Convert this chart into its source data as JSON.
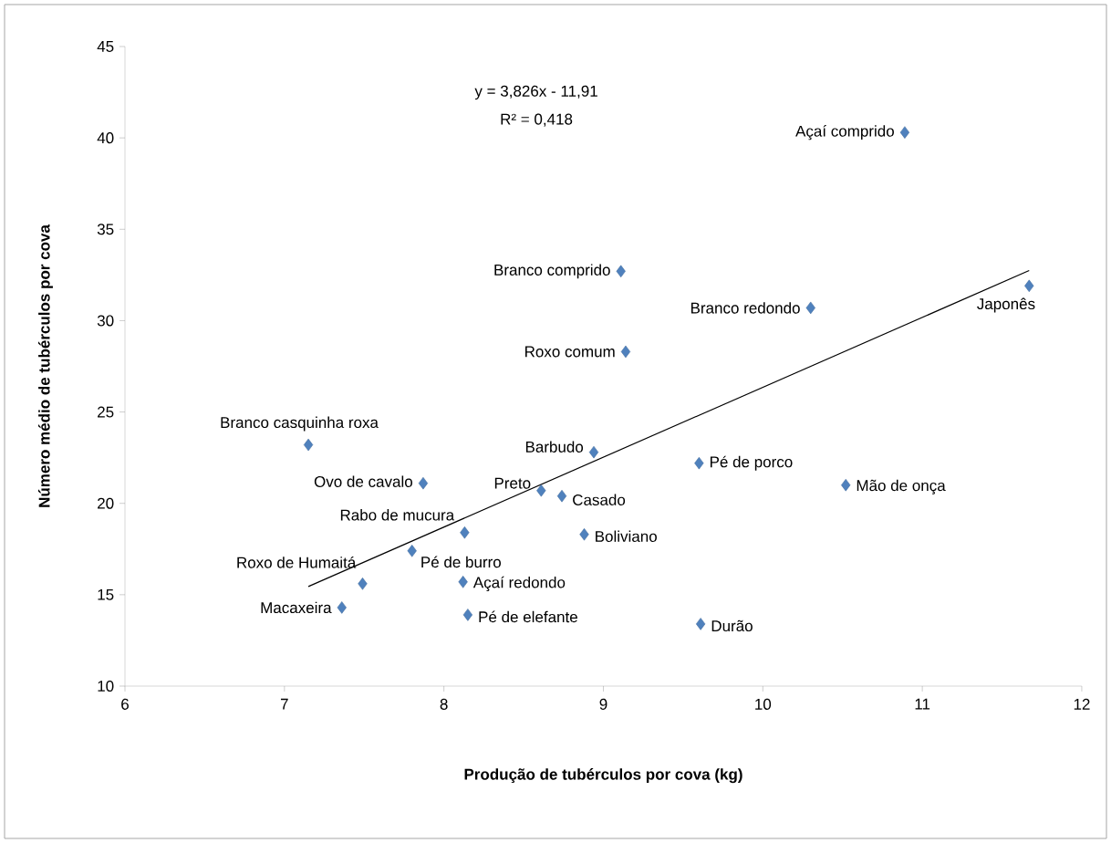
{
  "chart_data": {
    "type": "scatter",
    "xlabel": "Produção de tubérculos por cova (kg)",
    "ylabel": "Número médio de tubérculos por cova",
    "xlim": [
      6,
      12
    ],
    "xticks": [
      6,
      7,
      8,
      9,
      10,
      11,
      12
    ],
    "ylim": [
      10,
      45
    ],
    "yticks": [
      10,
      15,
      20,
      25,
      30,
      35,
      40,
      45
    ],
    "marker": "diamond",
    "grid": false,
    "series": [
      {
        "color": "#4f81bd",
        "x": [
          10.89,
          9.11,
          10.3,
          11.67,
          9.14,
          7.15,
          8.94,
          9.6,
          7.87,
          10.52,
          8.61,
          8.74,
          8.13,
          8.88,
          7.8,
          7.49,
          8.12,
          7.36,
          8.15,
          9.61
        ],
        "values": [
          40.3,
          32.7,
          30.7,
          31.9,
          28.3,
          23.2,
          22.8,
          22.2,
          21.1,
          21.0,
          20.7,
          20.4,
          18.4,
          18.3,
          17.4,
          15.6,
          15.7,
          14.3,
          13.9,
          13.4
        ]
      },
      {
        "type": "line",
        "color": "#000000",
        "marker": "none",
        "x": [
          7.15,
          11.67
        ],
        "values": [
          15.45,
          32.74
        ]
      }
    ],
    "annotations": [
      "y = 3,826x - 11,91",
      "R² = 0,418",
      {
        "text": "Açaí comprido",
        "x": 10.89,
        "y": 40.3
      },
      {
        "text": "Branco comprido",
        "x": 9.11,
        "y": 32.7
      },
      {
        "text": "Branco redondo",
        "x": 10.3,
        "y": 30.7
      },
      {
        "text": "Japonês",
        "x": 11.67,
        "y": 31.9
      },
      {
        "text": "Roxo comum",
        "x": 9.14,
        "y": 28.3
      },
      {
        "text": "Branco casquinha roxa",
        "x": 7.15,
        "y": 23.2
      },
      {
        "text": "Barbudo",
        "x": 8.94,
        "y": 22.8
      },
      {
        "text": "Pé de porco",
        "x": 9.6,
        "y": 22.2
      },
      {
        "text": "Ovo de cavalo",
        "x": 7.87,
        "y": 21.1
      },
      {
        "text": "Mão de onça",
        "x": 10.52,
        "y": 21.0
      },
      {
        "text": "Preto",
        "x": 8.61,
        "y": 20.7
      },
      {
        "text": "Casado",
        "x": 8.74,
        "y": 20.4
      },
      {
        "text": "Rabo de mucura",
        "x": 8.13,
        "y": 18.4
      },
      {
        "text": "Boliviano",
        "x": 8.88,
        "y": 18.3
      },
      {
        "text": "Pé de burro",
        "x": 7.8,
        "y": 17.4
      },
      {
        "text": "Roxo de Humaitá",
        "x": 7.49,
        "y": 15.6
      },
      {
        "text": "Açaí redondo",
        "x": 8.12,
        "y": 15.7
      },
      {
        "text": "Macaxeira",
        "x": 7.36,
        "y": 14.3
      },
      {
        "text": "Pé de elefante",
        "x": 8.15,
        "y": 13.9
      },
      {
        "text": "Durão",
        "x": 9.61,
        "y": 13.4
      }
    ]
  }
}
